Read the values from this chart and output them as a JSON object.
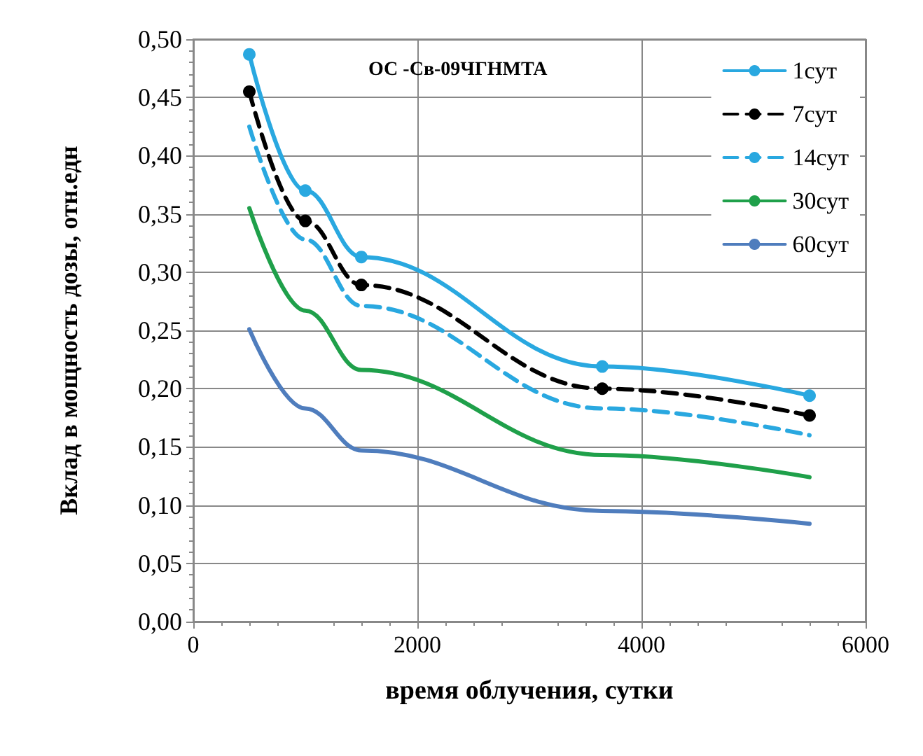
{
  "chart_data": {
    "type": "line",
    "title": "ОС -Св-09ЧГНМТА",
    "xlabel": "время облучения, сутки",
    "ylabel": "Вклад в мощность дозы, отн.едн",
    "x": [
      500,
      1000,
      1500,
      3650,
      5500
    ],
    "series": [
      {
        "name": "1сут",
        "color": "#29a8e0",
        "marker": "circle",
        "line_style": "solid",
        "values": [
          0.487,
          0.37,
          0.313,
          0.219,
          0.194
        ]
      },
      {
        "name": "7сут",
        "color": "#000000",
        "marker": "circle",
        "line_style": "dashed",
        "values": [
          0.455,
          0.344,
          0.289,
          0.2,
          0.177
        ]
      },
      {
        "name": "14сут",
        "color": "#29a8e0",
        "marker": "none",
        "line_style": "dashed",
        "values": [
          0.425,
          0.328,
          0.271,
          0.183,
          0.16
        ]
      },
      {
        "name": "30сут",
        "color": "#1fa04a",
        "marker": "none",
        "line_style": "solid",
        "values": [
          0.355,
          0.267,
          0.216,
          0.143,
          0.124
        ]
      },
      {
        "name": "60сут",
        "color": "#4f7dbd",
        "marker": "none",
        "line_style": "solid",
        "values": [
          0.251,
          0.183,
          0.147,
          0.095,
          0.084
        ]
      }
    ],
    "xlim": [
      0,
      6000
    ],
    "xticks": [
      0,
      2000,
      4000,
      6000
    ],
    "ylim": [
      0,
      0.5
    ],
    "yticks": [
      {
        "value": 0,
        "label": "0,00"
      },
      {
        "value": 0.05,
        "label": "0,05"
      },
      {
        "value": 0.1,
        "label": "0,10"
      },
      {
        "value": 0.15,
        "label": "0,15"
      },
      {
        "value": 0.2,
        "label": "0,20"
      },
      {
        "value": 0.25,
        "label": "0,25"
      },
      {
        "value": 0.3,
        "label": "0,30"
      },
      {
        "value": 0.35,
        "label": "0,35"
      },
      {
        "value": 0.4,
        "label": "0,40"
      },
      {
        "value": 0.45,
        "label": "0,45"
      },
      {
        "value": 0.5,
        "label": "0,50"
      }
    ],
    "grid": true,
    "legend": "top right"
  }
}
